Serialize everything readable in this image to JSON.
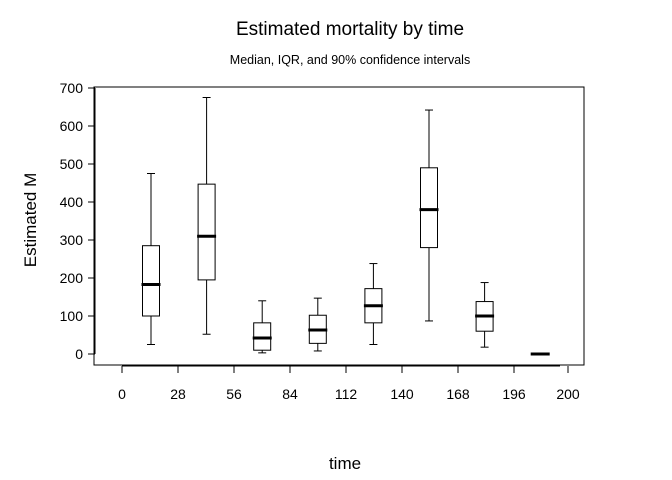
{
  "chart_data": {
    "type": "boxplot",
    "title": "Estimated mortality by time",
    "subtitle": "Median, IQR, and 90% confidence intervals",
    "xlabel": "time",
    "ylabel": "Estimated M",
    "ylim": [
      0,
      700
    ],
    "yticks": [
      "0",
      "100",
      "200",
      "300",
      "400",
      "500",
      "600",
      "700"
    ],
    "xticks": [
      "0",
      "28",
      "56",
      "84",
      "112",
      "140",
      "168",
      "196",
      "200"
    ],
    "boxes": [
      {
        "low": 25,
        "q1": 100,
        "median": 183,
        "q3": 285,
        "high": 475
      },
      {
        "low": 52,
        "q1": 195,
        "median": 310,
        "q3": 447,
        "high": 675
      },
      {
        "low": 3,
        "q1": 10,
        "median": 42,
        "q3": 82,
        "high": 140
      },
      {
        "low": 8,
        "q1": 28,
        "median": 63,
        "q3": 102,
        "high": 147
      },
      {
        "low": 25,
        "q1": 82,
        "median": 127,
        "q3": 172,
        "high": 238
      },
      {
        "low": 87,
        "q1": 280,
        "median": 380,
        "q3": 490,
        "high": 642
      },
      {
        "low": 18,
        "q1": 60,
        "median": 100,
        "q3": 138,
        "high": 188
      },
      {
        "low": 0,
        "q1": 0,
        "median": 0,
        "q3": 0,
        "high": 0
      }
    ],
    "grid": false,
    "legend": "none"
  }
}
